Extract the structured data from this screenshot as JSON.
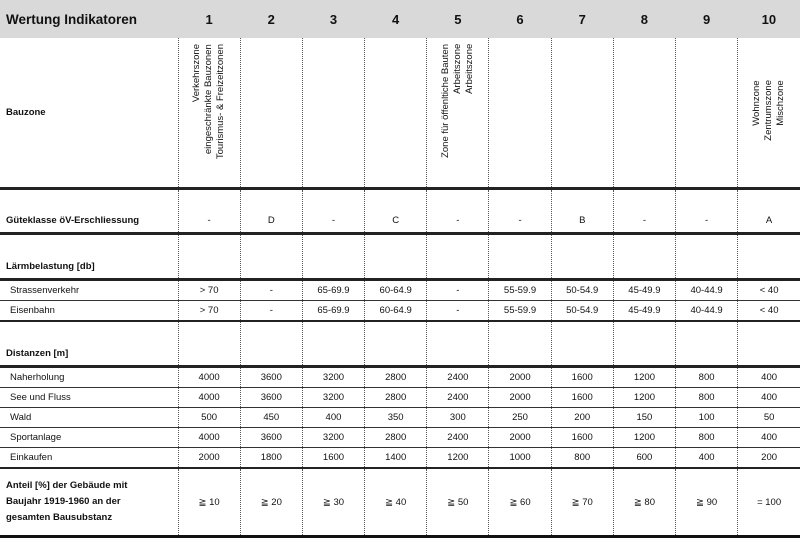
{
  "header": {
    "title": "Wertung Indikatoren",
    "columns": [
      "1",
      "2",
      "3",
      "4",
      "5",
      "6",
      "7",
      "8",
      "9",
      "10"
    ]
  },
  "bauzone": {
    "label": "Bauzone",
    "col1": [
      "Verkehrszone",
      "eingeschränkte Bauzonen",
      "Tourismus- & Freizeitzonen"
    ],
    "col5": [
      "Zone für öffenltiche Bauten",
      "Arbeitszone",
      "Arbeitszone"
    ],
    "col10": [
      "Wohnzone",
      "Zentrumszone",
      "Mischzone"
    ]
  },
  "gueteklasse": {
    "label": "Güteklasse öV-Erschliessung",
    "values": [
      "-",
      "D",
      "-",
      "C",
      "-",
      "-",
      "B",
      "-",
      "-",
      "A"
    ]
  },
  "laerm": {
    "label": "Lärmbelastung [db]",
    "rows": [
      {
        "label": "Strassenverkehr",
        "values": [
          "> 70",
          "-",
          "65-69.9",
          "60-64.9",
          "-",
          "55-59.9",
          "50-54.9",
          "45-49.9",
          "40-44.9",
          "< 40"
        ]
      },
      {
        "label": "Eisenbahn",
        "values": [
          "> 70",
          "-",
          "65-69.9",
          "60-64.9",
          "-",
          "55-59.9",
          "50-54.9",
          "45-49.9",
          "40-44.9",
          "< 40"
        ]
      }
    ]
  },
  "distanzen": {
    "label": "Distanzen [m]",
    "rows": [
      {
        "label": "Naherholung",
        "values": [
          "4000",
          "3600",
          "3200",
          "2800",
          "2400",
          "2000",
          "1600",
          "1200",
          "800",
          "400"
        ]
      },
      {
        "label": "See und Fluss",
        "values": [
          "4000",
          "3600",
          "3200",
          "2800",
          "2400",
          "2000",
          "1600",
          "1200",
          "800",
          "400"
        ]
      },
      {
        "label": "Wald",
        "values": [
          "500",
          "450",
          "400",
          "350",
          "300",
          "250",
          "200",
          "150",
          "100",
          "50"
        ]
      },
      {
        "label": "Sportanlage",
        "values": [
          "4000",
          "3600",
          "3200",
          "2800",
          "2400",
          "2000",
          "1600",
          "1200",
          "800",
          "400"
        ]
      },
      {
        "label": "Einkaufen",
        "values": [
          "2000",
          "1800",
          "1600",
          "1400",
          "1200",
          "1000",
          "800",
          "600",
          "400",
          "200"
        ]
      }
    ]
  },
  "anteil": {
    "label_lines": [
      "Anteil [%] der Gebäude mit",
      "Baujahr 1919-1960 an der",
      "gesamten Bausubstanz"
    ],
    "values": [
      "≧ 10",
      "≧ 20",
      "≧ 30",
      "≧ 40",
      "≧ 50",
      "≧ 60",
      "≧ 70",
      "≧ 80",
      "≧ 90",
      "= 100"
    ]
  }
}
